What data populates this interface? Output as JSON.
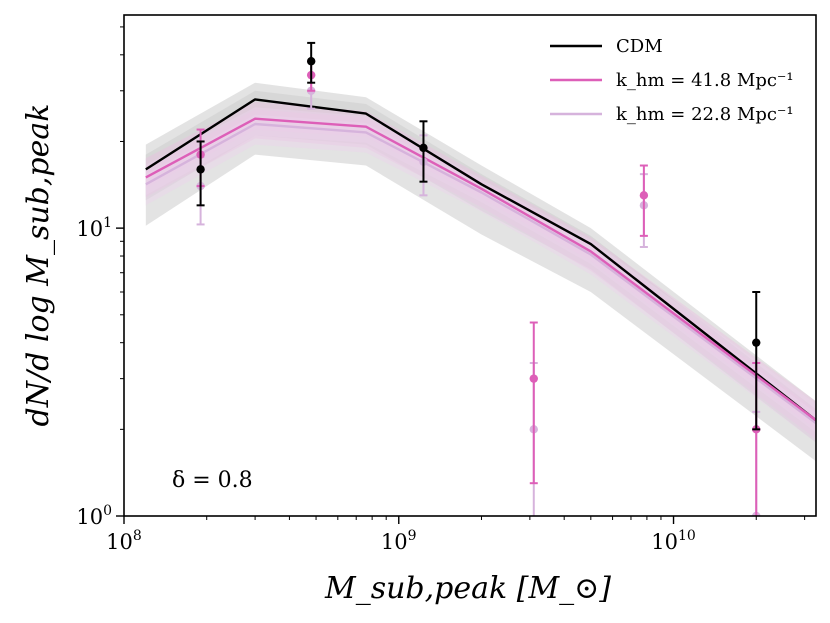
{
  "chart_data": {
    "type": "line",
    "x_scale": "log",
    "y_scale": "log",
    "xlim": [
      100000000,
      33000000000
    ],
    "ylim": [
      1,
      55
    ],
    "xlabel": "M_sub,peak [M_⊙]",
    "ylabel": "dN/d log M_sub,peak",
    "annotation": "δ = 0.8",
    "x_ticks": [
      {
        "value": 100000000,
        "base": "10",
        "exp": "8"
      },
      {
        "value": 1000000000,
        "base": "10",
        "exp": "9"
      },
      {
        "value": 10000000000,
        "base": "10",
        "exp": "10"
      }
    ],
    "y_ticks": [
      {
        "value": 1,
        "base": "10",
        "exp": "0"
      },
      {
        "value": 10,
        "base": "10",
        "exp": "1"
      }
    ],
    "legend": [
      {
        "label": "CDM",
        "color": "#000000"
      },
      {
        "label": "k_hm = 41.8 Mpc⁻¹",
        "color": "#dd5fb8"
      },
      {
        "label": "k_hm = 22.8 Mpc⁻¹",
        "color": "#d6b3dc"
      }
    ],
    "series": [
      {
        "name": "CDM",
        "color": "#000000",
        "x": [
          120000000,
          300000000,
          760000000,
          2000000000,
          5000000000,
          33000000000
        ],
        "y": [
          16,
          28,
          25,
          14.2,
          8.8,
          2.15
        ],
        "band_outer": {
          "lo": [
            10.2,
            18,
            16.5,
            9.5,
            6,
            1.55
          ],
          "hi": [
            19.5,
            32,
            28.5,
            16.5,
            10,
            2.5
          ]
        },
        "band_inner": {
          "lo": [
            12.5,
            21,
            19.5,
            11.5,
            7.2,
            1.8
          ],
          "hi": [
            18,
            30,
            27,
            15.4,
            9.4,
            2.35
          ]
        },
        "band_color": "#cccccc",
        "points": [
          {
            "x": 190000000,
            "y": 16,
            "lo": 12,
            "hi": 20
          },
          {
            "x": 480000000,
            "y": 38,
            "lo": 32,
            "hi": 44
          },
          {
            "x": 1230000000,
            "y": 19,
            "lo": 14.5,
            "hi": 23.5
          },
          {
            "x": 20000000000,
            "y": 4,
            "lo": 2,
            "hi": 6
          }
        ]
      },
      {
        "name": "k_hm = 41.8 Mpc⁻¹",
        "color": "#dd5fb8",
        "x": [
          120000000,
          300000000,
          760000000,
          2000000000,
          5000000000,
          33000000000
        ],
        "y": [
          15,
          24,
          22.5,
          13.7,
          8.3,
          2.15
        ],
        "band_outer": {
          "lo": [
            12.8,
            20.5,
            19,
            11.8,
            7.1,
            1.85
          ],
          "hi": [
            17.5,
            27.5,
            25.5,
            15.2,
            9.3,
            2.5
          ]
        },
        "band_inner": {
          "lo": [
            13.8,
            22,
            20.8,
            12.7,
            7.7,
            2
          ],
          "hi": [
            16.2,
            25.8,
            24.2,
            14.6,
            8.9,
            2.33
          ]
        },
        "band_color": "#e8bedf",
        "points": [
          {
            "x": 190000000,
            "y": 18,
            "lo": 14,
            "hi": 22
          },
          {
            "x": 480000000,
            "y": 34,
            "lo": 30,
            "hi": 38
          },
          {
            "x": 3100000000,
            "y": 3,
            "lo": 1.3,
            "hi": 4.7
          },
          {
            "x": 7800000000,
            "y": 13,
            "lo": 9.4,
            "hi": 16.5
          },
          {
            "x": 20000000000,
            "y": 2,
            "lo": 0.6,
            "hi": 3.4
          }
        ]
      },
      {
        "name": "k_hm = 22.8 Mpc⁻¹",
        "color": "#d6b3dc",
        "x": [
          120000000,
          300000000,
          760000000,
          2000000000,
          5000000000,
          33000000000
        ],
        "y": [
          14.2,
          23,
          21.5,
          13.3,
          8.1,
          2.1
        ],
        "band_outer": {
          "lo": [
            12,
            19.5,
            18.3,
            11.4,
            6.9,
            1.8
          ],
          "hi": [
            16.6,
            26.3,
            24.5,
            14.8,
            9.1,
            2.45
          ]
        },
        "band_inner": {
          "lo": [
            13,
            21,
            19.8,
            12.3,
            7.5,
            1.95
          ],
          "hi": [
            15.4,
            24.8,
            23.2,
            14.2,
            8.7,
            2.28
          ]
        },
        "band_color": "#ead3ec",
        "points": [
          {
            "x": 190000000,
            "y": 14,
            "lo": 10.3,
            "hi": 17.7
          },
          {
            "x": 480000000,
            "y": 30,
            "lo": 26,
            "hi": 34
          },
          {
            "x": 1230000000,
            "y": 17,
            "lo": 13,
            "hi": 21
          },
          {
            "x": 3100000000,
            "y": 2,
            "lo": 0.6,
            "hi": 3.4
          },
          {
            "x": 7800000000,
            "y": 12,
            "lo": 8.6,
            "hi": 15.4
          },
          {
            "x": 20000000000,
            "y": 1,
            "lo": 0.2,
            "hi": 2.3
          }
        ]
      }
    ]
  }
}
